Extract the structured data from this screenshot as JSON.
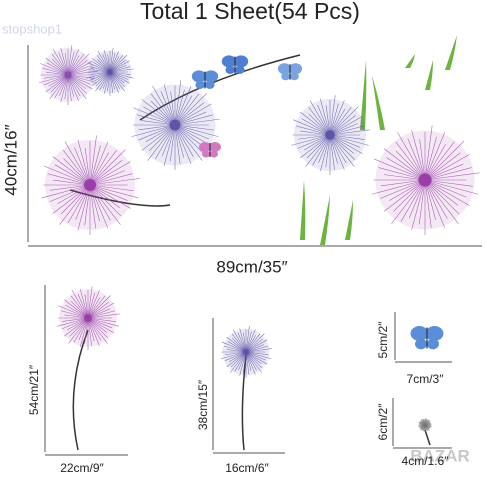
{
  "header": {
    "title": "Total 1 Sheet(54 Pcs)"
  },
  "watermarks": [
    "stopshop1",
    "BAZAR"
  ],
  "sheet": {
    "height_label": "40cm/16″",
    "width_label": "89cm/35″"
  },
  "items": [
    {
      "height_label": "54cm/21″",
      "width_label": "22cm/9″"
    },
    {
      "height_label": "38cm/15″",
      "width_label": "16cm/6″"
    },
    {
      "height_label": "5cm/2″",
      "width_label": "7cm/3″"
    },
    {
      "height_label": "6cm/2″",
      "width_label": "4cm/1.6″"
    }
  ]
}
